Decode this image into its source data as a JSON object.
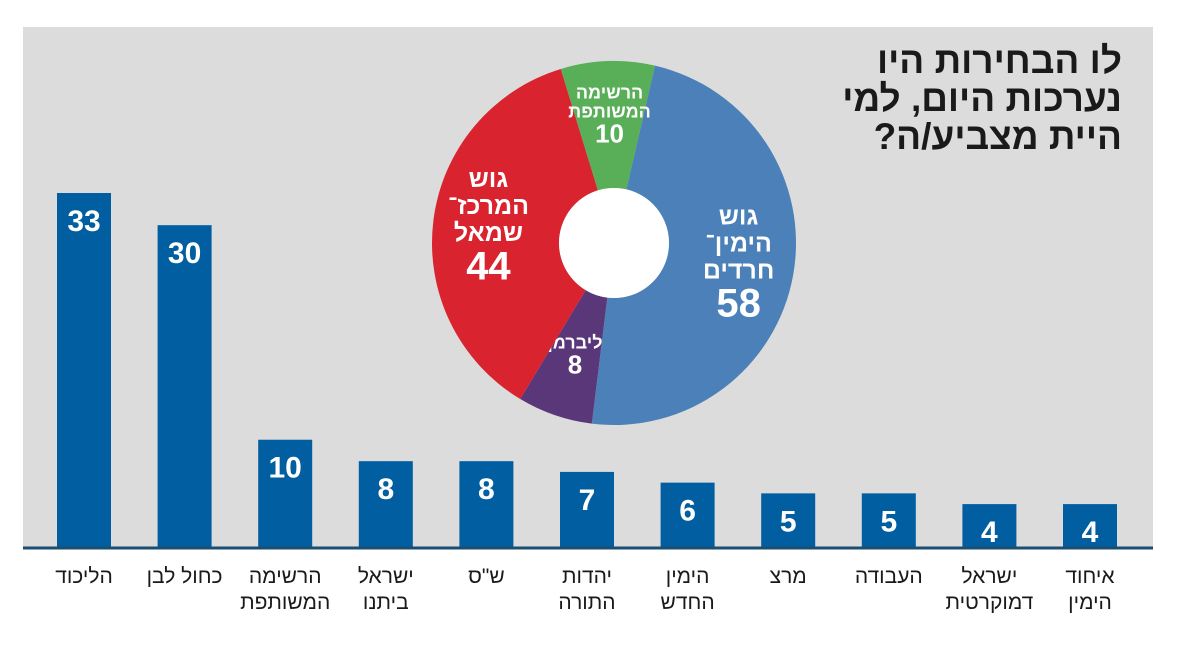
{
  "title_lines": [
    "לו הבחירות היו",
    "נערכות היום, למי",
    "היית מצביע/ה?"
  ],
  "colors": {
    "background_panel": "#dcdcdc",
    "bar": "#005ea1",
    "baseline": "#1b4f72",
    "right_bloc": "#4b80b9",
    "center_left_bloc": "#d9232f",
    "joint_list": "#59ae58",
    "liberman": "#5a3779"
  },
  "chart_data": [
    {
      "type": "bar",
      "categories": [
        [
          "הליכוד"
        ],
        [
          "כחול לבן"
        ],
        [
          "הרשימה",
          "המשותפת"
        ],
        [
          "ישראל",
          "ביתנו"
        ],
        [
          "ש\"ס"
        ],
        [
          "יהדות",
          "התורה"
        ],
        [
          "הימין",
          "החדש"
        ],
        [
          "מרצ"
        ],
        [
          "העבודה"
        ],
        [
          "ישראל",
          "דמוקרטית"
        ],
        [
          "איחוד",
          "הימין"
        ]
      ],
      "values": [
        33,
        30,
        10,
        8,
        8,
        7,
        6,
        5,
        5,
        4,
        4
      ],
      "ylim": [
        0,
        37
      ],
      "grid": false
    },
    {
      "type": "pie",
      "donut": true,
      "slices": [
        {
          "label_lines": [
            "גוש",
            "הימין־",
            "חרדים"
          ],
          "value": 58,
          "color": "#4b80b9"
        },
        {
          "label_lines": [
            "ליברמן"
          ],
          "value": 8,
          "color": "#5a3779"
        },
        {
          "label_lines": [
            "גוש",
            "המרכז־",
            "שמאל"
          ],
          "value": 44,
          "color": "#d9232f"
        },
        {
          "label_lines": [
            "הרשימה",
            "המשותפת"
          ],
          "value": 10,
          "color": "#59ae58"
        }
      ]
    }
  ]
}
